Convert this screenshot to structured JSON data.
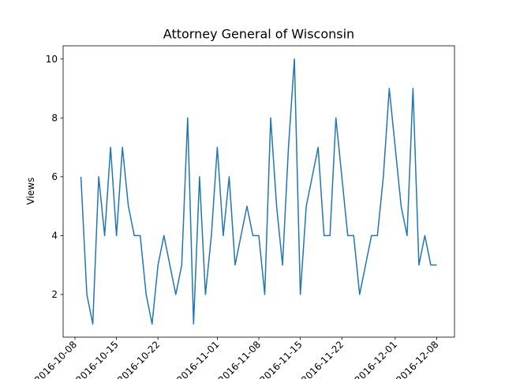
{
  "chart_data": {
    "type": "line",
    "title": "Attorney General of Wisconsin",
    "xlabel": "",
    "ylabel": "Views",
    "x_start_date": "2016-10-09",
    "x": [
      "2016-10-09",
      "2016-10-10",
      "2016-10-11",
      "2016-10-12",
      "2016-10-13",
      "2016-10-14",
      "2016-10-15",
      "2016-10-16",
      "2016-10-17",
      "2016-10-18",
      "2016-10-19",
      "2016-10-20",
      "2016-10-21",
      "2016-10-22",
      "2016-10-23",
      "2016-10-24",
      "2016-10-25",
      "2016-10-26",
      "2016-10-27",
      "2016-10-28",
      "2016-10-29",
      "2016-10-30",
      "2016-10-31",
      "2016-11-01",
      "2016-11-02",
      "2016-11-03",
      "2016-11-04",
      "2016-11-05",
      "2016-11-06",
      "2016-11-07",
      "2016-11-08",
      "2016-11-09",
      "2016-11-10",
      "2016-11-11",
      "2016-11-12",
      "2016-11-13",
      "2016-11-14",
      "2016-11-15",
      "2016-11-16",
      "2016-11-17",
      "2016-11-18",
      "2016-11-19",
      "2016-11-20",
      "2016-11-21",
      "2016-11-22",
      "2016-11-23",
      "2016-11-24",
      "2016-11-25",
      "2016-11-26",
      "2016-11-27",
      "2016-11-28",
      "2016-11-29",
      "2016-11-30",
      "2016-12-01",
      "2016-12-02",
      "2016-12-03",
      "2016-12-04",
      "2016-12-05",
      "2016-12-06",
      "2016-12-07",
      "2016-12-08"
    ],
    "series": [
      {
        "name": "Views",
        "color": "#1f77b4",
        "values": [
          6,
          2,
          1,
          6,
          4,
          7,
          4,
          7,
          5,
          4,
          4,
          2,
          1,
          3,
          4,
          3,
          2,
          3,
          8,
          1,
          6,
          2,
          4,
          7,
          4,
          6,
          3,
          4,
          5,
          4,
          4,
          2,
          8,
          5,
          3,
          7,
          10,
          2,
          5,
          6,
          7,
          4,
          4,
          8,
          6,
          4,
          4,
          2,
          3,
          4,
          4,
          6,
          9,
          7,
          5,
          4,
          9,
          3,
          4,
          3,
          3
        ]
      }
    ],
    "xticks": [
      "2016-10-08",
      "2016-10-15",
      "2016-10-22",
      "2016-11-01",
      "2016-11-08",
      "2016-11-15",
      "2016-11-22",
      "2016-12-01",
      "2016-12-08"
    ],
    "yticks": [
      2,
      4,
      6,
      8,
      10
    ],
    "ylim": [
      0.55,
      10.45
    ],
    "xlim": [
      "2016-10-06",
      "2016-12-11"
    ],
    "grid": false,
    "legend": "none"
  }
}
